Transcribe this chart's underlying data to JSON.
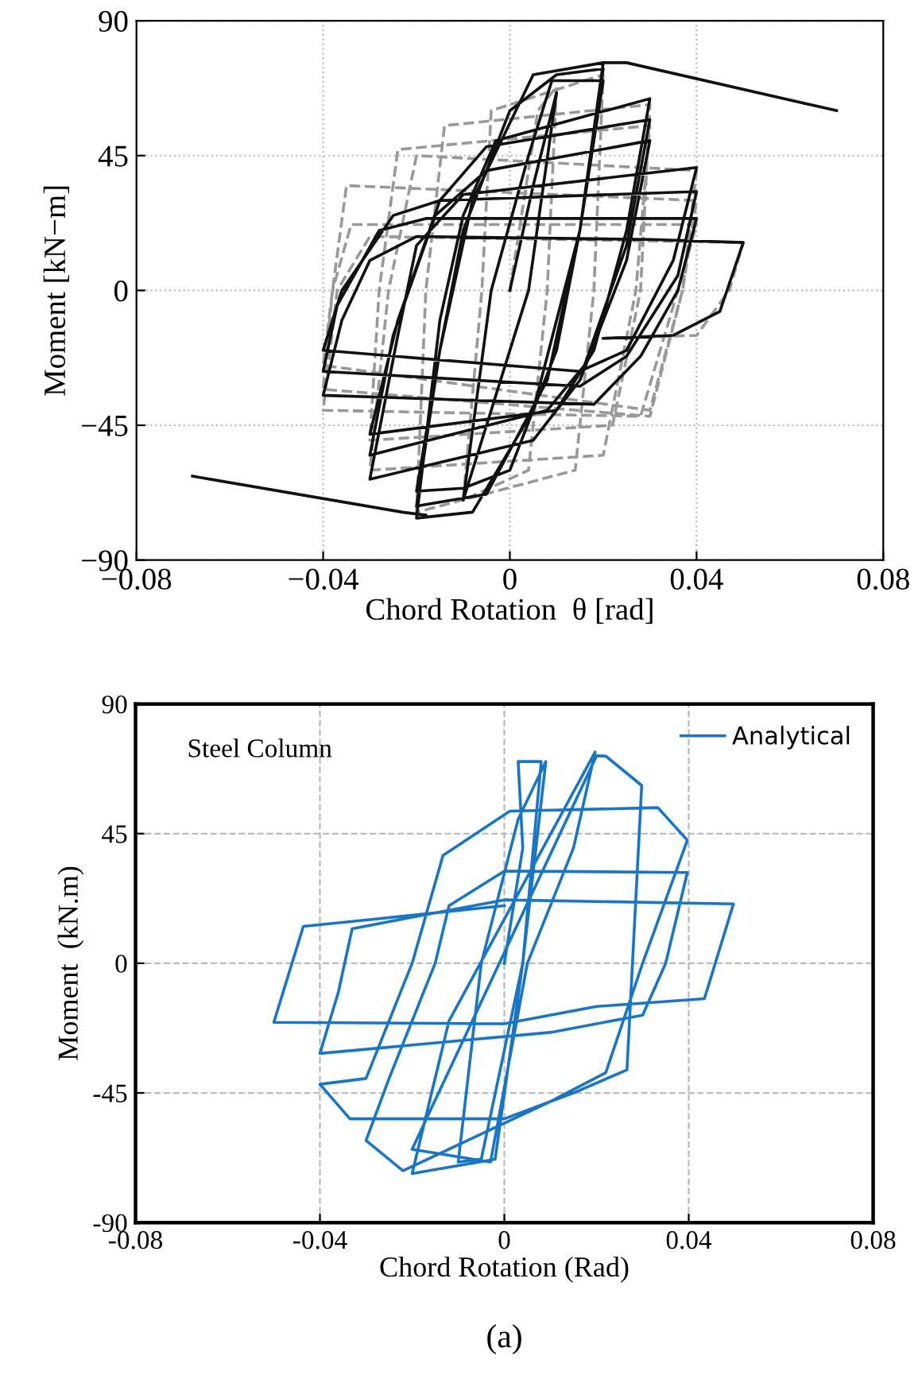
{
  "chart_data": [
    {
      "type": "line",
      "xlabel": "Chord Rotation  θ [rad]",
      "ylabel": "Moment [kN−m]",
      "xlim": [
        -0.08,
        0.08
      ],
      "ylim": [
        -90,
        90
      ],
      "xticks": [
        {
          "value": -0.08,
          "label": "−0.08"
        },
        {
          "value": -0.04,
          "label": "−0.04"
        },
        0,
        0.04,
        0.08
      ],
      "yticks": [
        {
          "value": -90,
          "label": "−90"
        },
        {
          "value": -45,
          "label": "−45"
        },
        0,
        45,
        90
      ],
      "grid": true,
      "legend": false,
      "series": [
        {
          "color": "#999999",
          "line_style": "dashed",
          "x": [
            0,
            0.006,
            0.01,
            0.008,
            0.004,
            -0.01,
            -0.006,
            -0.004,
            0.02,
            0.018,
            0.014,
            -0.02,
            -0.018,
            -0.014,
            0.03,
            0.028,
            0.022,
            -0.03,
            -0.028,
            -0.024,
            0.03,
            0.027,
            0.02,
            -0.03,
            -0.026,
            -0.02,
            0.04,
            0.037,
            0.03,
            -0.04,
            -0.038,
            -0.035,
            0.04,
            0.037,
            0.03,
            -0.04,
            -0.038,
            -0.034,
            0.04,
            0.036,
            0.028,
            -0.04,
            -0.037,
            -0.03,
            0.05,
            0.047,
            0.04,
            0.02
          ],
          "values": [
            0,
            60,
            68,
            0,
            -60,
            -70,
            0,
            60,
            72,
            0,
            -60,
            -74,
            0,
            55,
            62,
            0,
            -45,
            -50,
            0,
            47,
            55,
            0,
            -55,
            -60,
            0,
            45,
            40,
            0,
            -40,
            -25,
            0,
            35,
            30,
            0,
            -42,
            -33,
            0,
            22,
            22,
            0,
            -42,
            -40,
            0,
            18,
            16,
            0,
            -15,
            -16
          ]
        },
        {
          "color": "#111111",
          "line_style": "solid",
          "x": [
            0,
            0.005,
            0.01,
            0.004,
            -0.004,
            -0.01,
            -0.004,
            0.004,
            0.009,
            0.02,
            0.015,
            0.01,
            0,
            -0.01,
            -0.02,
            -0.015,
            -0.01,
            0,
            0.01,
            0.02,
            0.015,
            0.008,
            -0.005,
            -0.02,
            -0.015,
            -0.008,
            0.005,
            0.02,
            0.015,
            0.005,
            -0.008,
            -0.02,
            -0.015,
            -0.01,
            -0.003,
            0.03,
            0.025,
            0.018,
            0.01,
            -0.03,
            -0.024,
            -0.015,
            -0.005,
            0.03,
            0.025,
            0.016,
            0.008,
            -0.03,
            -0.025,
            -0.016,
            -0.005,
            0.03,
            0.025,
            0.015,
            0.005,
            -0.03,
            -0.024,
            -0.02,
            -0.01,
            0.04,
            0.035,
            0.025,
            0.015,
            -0.04,
            -0.036,
            -0.025,
            -0.015,
            0.04,
            0.036,
            0.025,
            0.015,
            -0.04,
            -0.037,
            -0.028,
            -0.018,
            0.04,
            0.036,
            0.028,
            0.018,
            -0.04,
            -0.036,
            -0.03,
            -0.02,
            0.03,
            0.05,
            0.045,
            0.035,
            0.02
          ],
          "values": [
            0,
            35,
            66,
            0,
            -40,
            -70,
            0,
            45,
            70,
            70,
            20,
            -20,
            -60,
            -66,
            -67,
            -20,
            20,
            60,
            72,
            74,
            20,
            -30,
            -68,
            -72,
            -20,
            30,
            72,
            76,
            20,
            -40,
            -74,
            -76,
            -10,
            25,
            50,
            64,
            20,
            -20,
            -40,
            -48,
            -10,
            30,
            48,
            57,
            15,
            -25,
            -40,
            -55,
            -15,
            25,
            40,
            50,
            10,
            -30,
            -50,
            -63,
            -15,
            15,
            32,
            41,
            10,
            -20,
            -27,
            -20,
            0,
            25,
            30,
            33,
            5,
            -22,
            -32,
            -27,
            -5,
            20,
            24,
            24,
            0,
            -22,
            -38,
            -35,
            -10,
            10,
            18,
            17,
            16,
            -7,
            -15,
            -16
          ]
        },
        {
          "color": "#111111",
          "line_style": "solid",
          "x": [
            -0.068,
            -0.023,
            -0.018
          ],
          "values": [
            -62,
            -74,
            -75
          ]
        },
        {
          "color": "#111111",
          "line_style": "solid",
          "x": [
            0.02,
            0.025,
            0.07
          ],
          "values": [
            76,
            76,
            60
          ]
        }
      ]
    },
    {
      "type": "line",
      "xlabel": "Chord Rotation (Rad)",
      "ylabel": "Moment  (kN.m)",
      "xlim": [
        -0.08,
        0.08
      ],
      "ylim": [
        -90,
        90
      ],
      "xticks": [
        -0.08,
        -0.04,
        0,
        0.04,
        0.08
      ],
      "yticks": [
        -90,
        -45,
        0,
        45,
        90
      ],
      "grid": true,
      "legend": "top right",
      "annotations": [
        "Steel Column",
        "(a)"
      ],
      "series": [
        {
          "name": "Analytical",
          "color": "#1a75c4",
          "line_style": "solid",
          "x": [
            0,
            0.004,
            0.003,
            0.008,
            0.004,
            -0.005,
            -0.01,
            -0.005,
            0.003,
            0.009,
            0.004,
            -0.002,
            -0.02,
            -0.012,
            0.0197,
            0.015,
            0.005,
            -0.003,
            -0.02,
            0.02,
            0.022,
            0.0298,
            0.0266,
            0.015,
            0,
            -0.0335,
            -0.04,
            -0.03,
            -0.02,
            -0.0133,
            0.0012,
            0.0333,
            0.0397,
            0.03,
            0.022,
            0.01,
            -0.022,
            -0.03,
            -0.025,
            -0.015,
            -0.012,
            0,
            0.0397,
            0.035,
            0.03,
            0.01,
            -0.04,
            -0.036,
            -0.033,
            -0.02,
            0,
            0.0497,
            0.0434,
            0.02,
            0,
            -0.05,
            -0.0436,
            -0.03,
            0
          ],
          "values": [
            0,
            40,
            70,
            70,
            0,
            -68,
            -69,
            0,
            50,
            70,
            0,
            -68,
            -73,
            -20,
            73.3,
            40,
            0,
            -69,
            -64.6,
            72,
            71.9,
            61.7,
            -37,
            -45,
            -54,
            -54,
            -42,
            -40,
            0,
            37.4,
            52.8,
            54,
            42.7,
            0,
            -38,
            -48,
            -72,
            -61.5,
            -40,
            0,
            20,
            32,
            31.5,
            0,
            -18,
            -24,
            -31.3,
            -10,
            12,
            16,
            22,
            20.6,
            -12.3,
            -15,
            -21,
            -20.5,
            12.8,
            15,
            20
          ]
        }
      ]
    }
  ]
}
